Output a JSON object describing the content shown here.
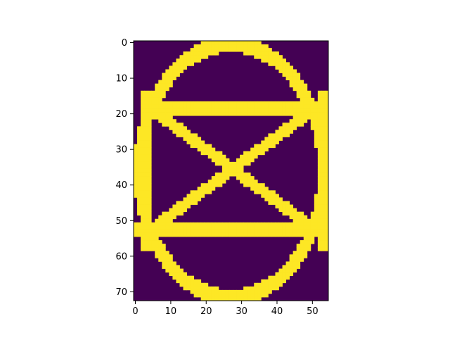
{
  "chart_data": {
    "type": "heatmap",
    "title": "",
    "xlabel": "",
    "ylabel": "",
    "rows": 73,
    "cols": 55,
    "xlim": [
      -0.5,
      54.5
    ],
    "ylim": [
      72.5,
      -0.5
    ],
    "x_ticks": [
      "0",
      "10",
      "20",
      "30",
      "40",
      "50"
    ],
    "y_ticks": [
      "0",
      "10",
      "20",
      "30",
      "40",
      "50",
      "60",
      "70"
    ],
    "x_tick_values": [
      0,
      10,
      20,
      30,
      40,
      50
    ],
    "y_tick_values": [
      0,
      10,
      20,
      30,
      40,
      50,
      60,
      70
    ],
    "colormap": "viridis",
    "low_color": "#440154",
    "high_color": "#fde725",
    "grid": false,
    "legend": "none",
    "shapes": {
      "ellipse": {
        "cx": 27,
        "cy": 36,
        "rx": 26,
        "ry": 35.5,
        "thickness": 1.6
      },
      "horizontal_bars": [
        {
          "y_from": 17,
          "y_to": 20,
          "x_from": 2,
          "x_to": 54
        },
        {
          "y_from": 51,
          "y_to": 54,
          "x_from": 0,
          "x_to": 54
        }
      ],
      "vertical_bars": [
        {
          "x_from": 2,
          "x_to": 4,
          "y_from": 14,
          "y_to": 58
        },
        {
          "x_from": 52,
          "x_to": 54,
          "y_from": 14,
          "y_to": 58
        }
      ],
      "diagonals": [
        {
          "from": [
            5,
            19
          ],
          "to": [
            50,
            52
          ],
          "thickness": 1.6
        },
        {
          "from": [
            50,
            19
          ],
          "to": [
            5,
            52
          ],
          "thickness": 1.6
        }
      ]
    }
  }
}
